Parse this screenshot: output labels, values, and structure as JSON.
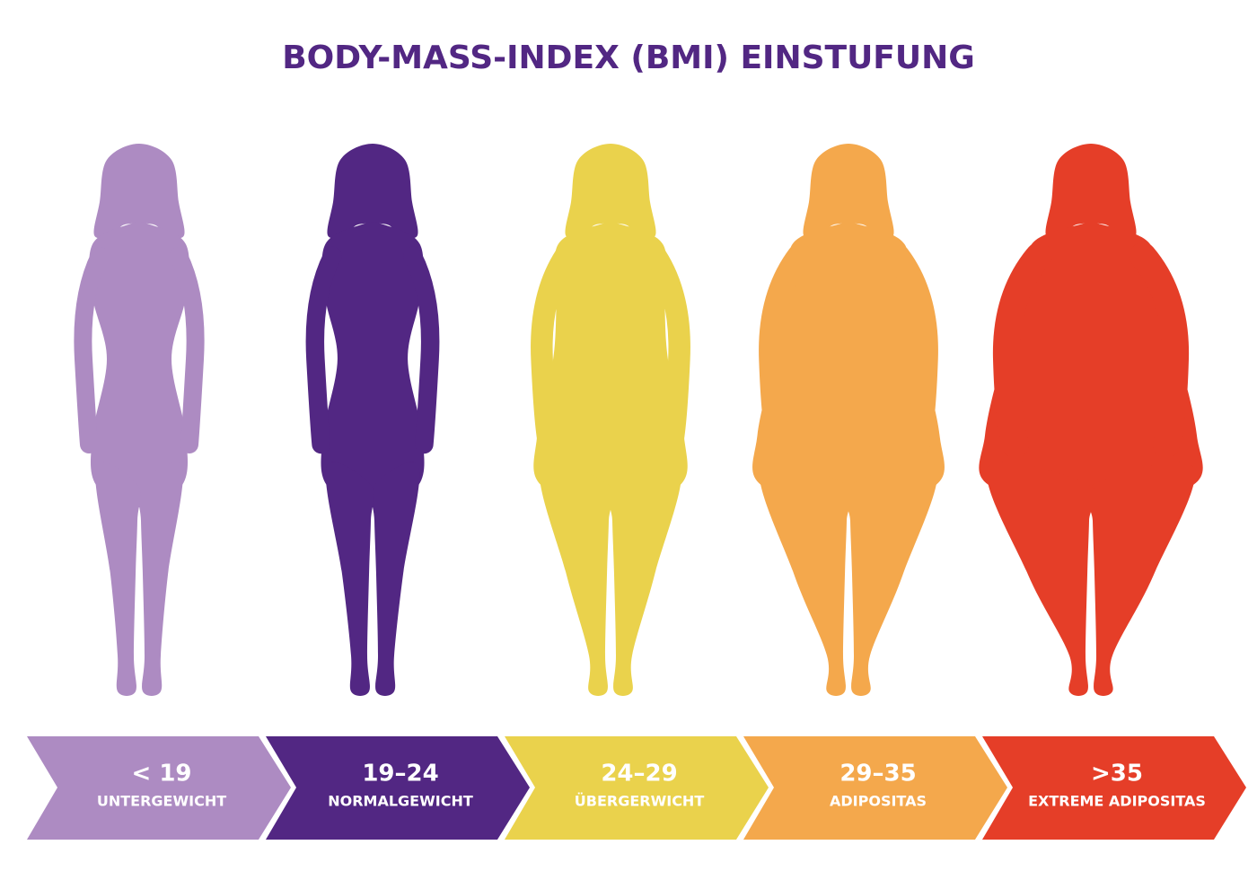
{
  "title": "BODY-MASS-INDEX (BMI) EINSTUFUNG",
  "items": [
    {
      "range": "< 19",
      "label": "UNTERGEWICHT",
      "color": "#ad8bc2"
    },
    {
      "range": "19–24",
      "label": "NORMALGEWICHT",
      "color": "#522783"
    },
    {
      "range": "24–29",
      "label": "ÜBERGERWICHT",
      "color": "#ead24c"
    },
    {
      "range": "29–35",
      "label": "ADIPOSITAS",
      "color": "#f4a84c"
    },
    {
      "range": ">35",
      "label": "EXTREME ADIPOSITAS",
      "color": "#e53e28"
    }
  ]
}
